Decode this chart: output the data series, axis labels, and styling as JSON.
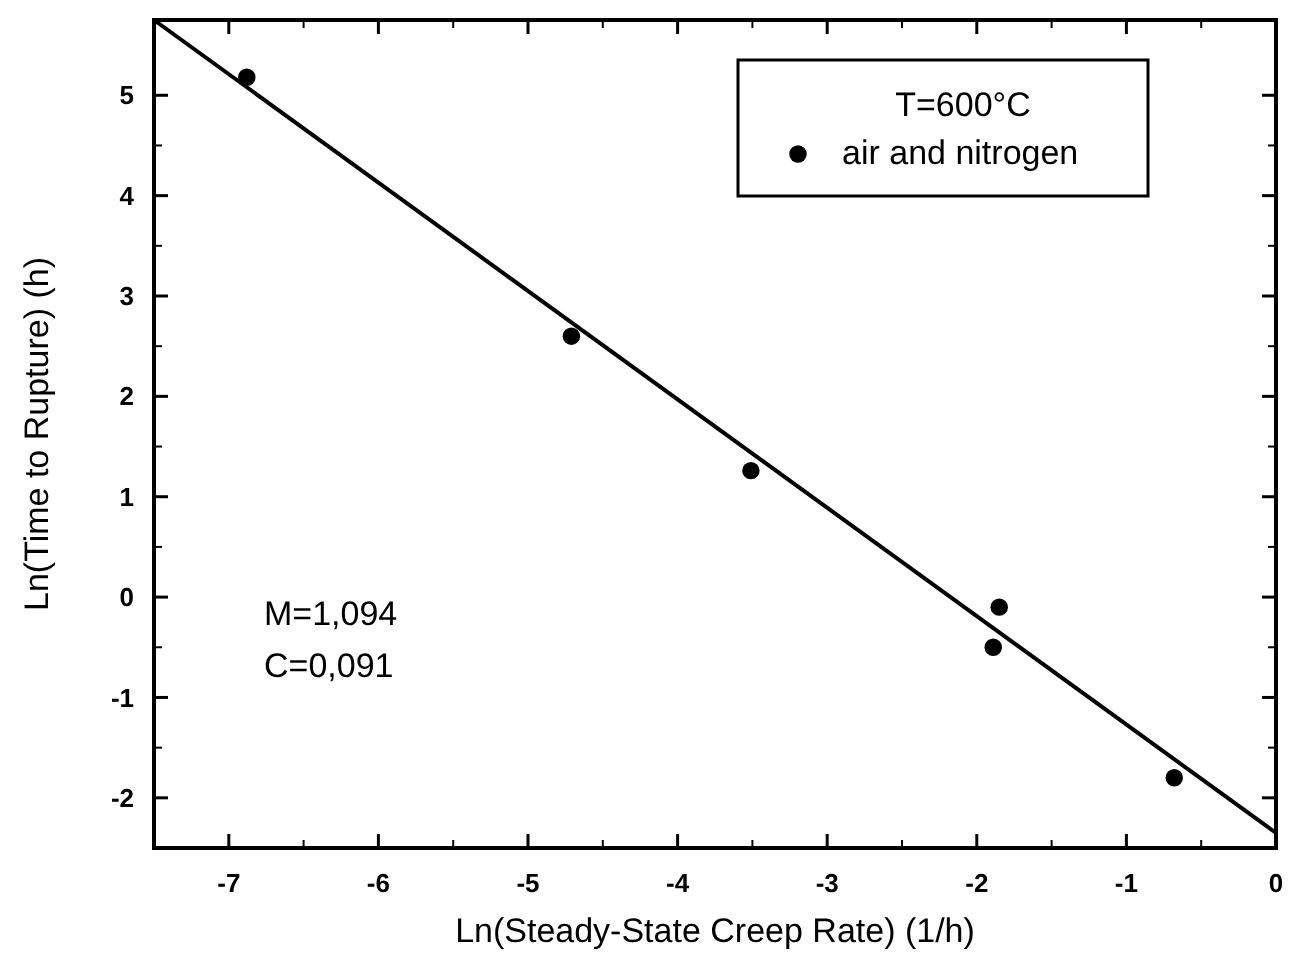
{
  "chart_data": {
    "type": "scatter",
    "xlabel": "Ln(Steady-State Creep Rate) (1/h)",
    "ylabel": "Ln(Time to Rupture) (h)",
    "legend_title": "T=600°C",
    "legend": "top right",
    "grid": false,
    "xlim": [
      -7.5,
      0
    ],
    "xticks": [
      -7,
      -6,
      -5,
      -4,
      -3,
      -2,
      -1,
      0
    ],
    "ylim": [
      -2.5,
      5.75
    ],
    "yticks": [
      -2,
      -1,
      0,
      1,
      2,
      3,
      4,
      5
    ],
    "annotations": [
      "M=1,094",
      "C=0,091"
    ],
    "series": [
      {
        "name": "air and nitrogen",
        "color": "#000000",
        "marker": "circle",
        "x": [
          -6.88,
          -4.71,
          -3.51,
          -1.85,
          -1.89,
          -0.68
        ],
        "values": [
          5.18,
          2.6,
          1.26,
          -0.1,
          -0.5,
          -1.8
        ]
      },
      {
        "type": "line",
        "color": "#000000",
        "line_style": "solid",
        "marker": "none",
        "x": [
          -7.5,
          0
        ],
        "values": [
          5.75,
          -2.35
        ]
      }
    ]
  }
}
